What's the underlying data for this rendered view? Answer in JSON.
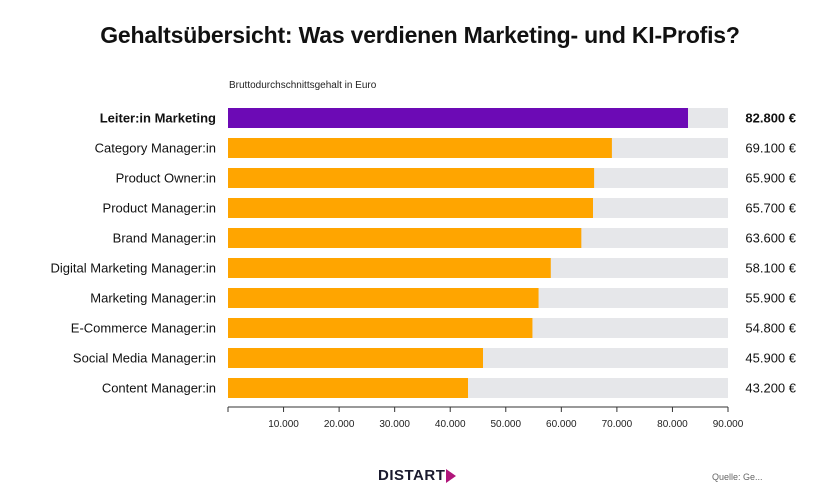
{
  "chart_data": {
    "type": "bar",
    "orientation": "horizontal",
    "title": "Gehaltsübersicht: Was verdienen Marketing- und KI-Profis?",
    "subtitle": "Bruttodurchschnittsgehalt in Euro",
    "categories": [
      "Leiter:in Marketing",
      "Category Manager:in",
      "Product Owner:in",
      "Product Manager:in",
      "Brand Manager:in",
      "Digital Marketing Manager:in",
      "Marketing Manager:in",
      "E-Commerce Manager:in",
      "Social Media Manager:in",
      "Content Manager:in"
    ],
    "values": [
      82800,
      69100,
      65900,
      65700,
      63600,
      58100,
      55900,
      54800,
      45900,
      43200
    ],
    "value_labels": [
      "82.800 €",
      "69.100 €",
      "65.900 €",
      "65.700 €",
      "63.600 €",
      "58.100 €",
      "55.900 €",
      "54.800 €",
      "45.900 €",
      "43.200 €"
    ],
    "highlight_index": 0,
    "xlim": [
      0,
      90000
    ],
    "xticks": [
      10000,
      20000,
      30000,
      40000,
      50000,
      60000,
      70000,
      80000,
      90000
    ],
    "xtick_labels": [
      "10.000",
      "20.000",
      "30.000",
      "40.000",
      "50.000",
      "60.000",
      "70.000",
      "80.000",
      "90.000"
    ],
    "colors": {
      "highlight": "#6c0ab5",
      "bar": "#ffa500",
      "track": "#e6e7ea",
      "axis": "#333333"
    }
  },
  "footer": {
    "logo_text": "DISTART",
    "source_text": "Quelle: Ge..."
  }
}
